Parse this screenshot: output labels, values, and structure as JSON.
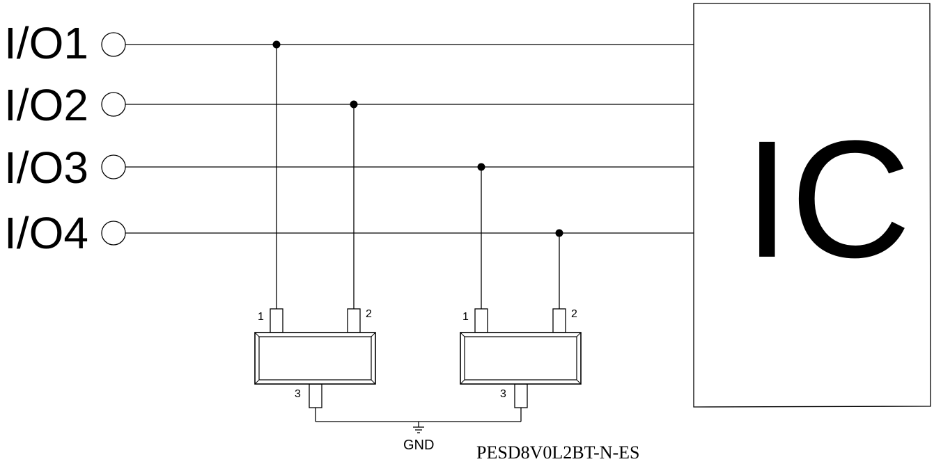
{
  "io_labels": [
    "I/O1",
    "I/O2",
    "I/O3",
    "I/O4"
  ],
  "ic_label": "IC",
  "pin_labels": {
    "pin1": "1",
    "pin2": "2",
    "pin3": "3"
  },
  "gnd_label": "GND",
  "part_number": "PESD8V0L2BT-N-ES"
}
